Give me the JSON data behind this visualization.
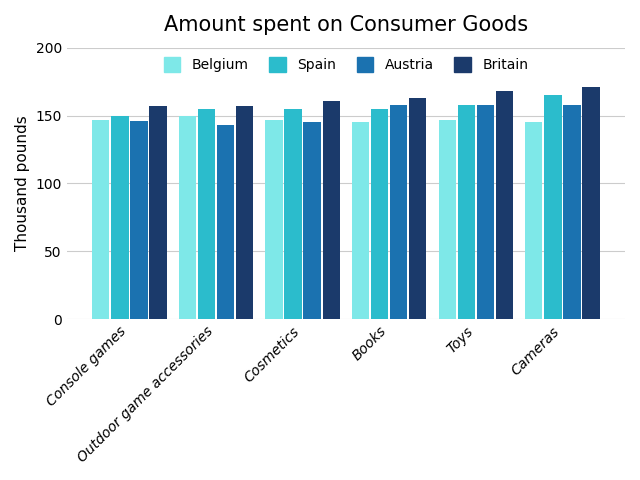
{
  "title": "Amount spent on Consumer Goods",
  "ylabel": "Thousand pounds",
  "categories": [
    "Console games",
    "Outdoor game accessories",
    "Cosmetics",
    "Books",
    "Toys",
    "Cameras"
  ],
  "series": {
    "Belgium": [
      147,
      150,
      147,
      145,
      147,
      145
    ],
    "Spain": [
      150,
      155,
      155,
      155,
      158,
      165
    ],
    "Austria": [
      146,
      143,
      145,
      158,
      158,
      158
    ],
    "Britain": [
      157,
      157,
      161,
      163,
      168,
      171
    ]
  },
  "colors": {
    "Belgium": "#7EE8E8",
    "Spain": "#2BBCCC",
    "Austria": "#1B72B0",
    "Britain": "#1B3A6B"
  },
  "legend_order": [
    "Belgium",
    "Spain",
    "Austria",
    "Britain"
  ],
  "ylim": [
    0,
    200
  ],
  "yticks": [
    0,
    50,
    100,
    150,
    200
  ],
  "background_color": "#ffffff",
  "title_fontsize": 15,
  "axis_label_fontsize": 11,
  "tick_fontsize": 10
}
